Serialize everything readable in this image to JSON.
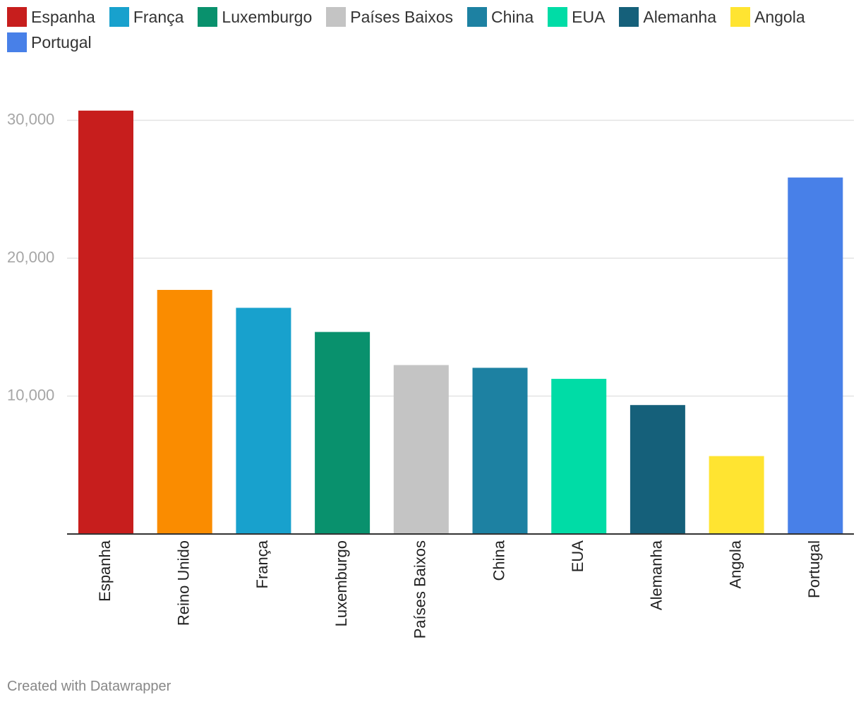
{
  "chart_data": {
    "type": "bar",
    "categories": [
      "Espanha",
      "Reino Unido",
      "França",
      "Luxemburgo",
      "Países Baixos",
      "China",
      "EUA",
      "Alemanha",
      "Angola",
      "Portugal"
    ],
    "values": [
      30700,
      17700,
      16400,
      14650,
      12250,
      12050,
      11250,
      9350,
      5650,
      25850
    ],
    "colors": [
      "#c71e1d",
      "#fa8c00",
      "#18a1cd",
      "#09916d",
      "#c4c4c4",
      "#1d81a2",
      "#00dca6",
      "#15607a",
      "#ffe431",
      "#4880e8"
    ],
    "legend": [
      {
        "label": "Espanha",
        "color": "#c71e1d"
      },
      {
        "label": "França",
        "color": "#18a1cd"
      },
      {
        "label": "Luxemburgo",
        "color": "#09916d"
      },
      {
        "label": "Países Baixos",
        "color": "#c4c4c4"
      },
      {
        "label": "China",
        "color": "#1d81a2"
      },
      {
        "label": "EUA",
        "color": "#00dca6"
      },
      {
        "label": "Alemanha",
        "color": "#15607a"
      },
      {
        "label": "Angola",
        "color": "#ffe431"
      },
      {
        "label": "Portugal",
        "color": "#4880e8"
      }
    ],
    "yticks": [
      10000,
      20000,
      30000
    ],
    "ytick_labels": [
      "10,000",
      "20,000",
      "30,000"
    ],
    "ylim": [
      0,
      30000
    ],
    "grid": true,
    "legend_position": "top-left",
    "title": "",
    "xlabel": "",
    "ylabel": ""
  },
  "footer": {
    "credit": "Created with Datawrapper"
  }
}
